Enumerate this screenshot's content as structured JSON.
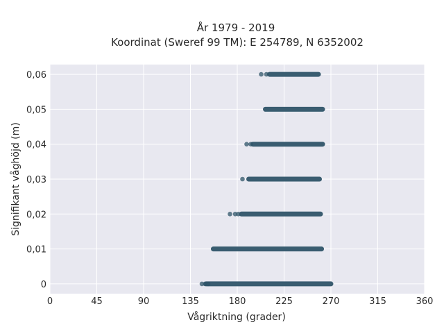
{
  "chart_data": {
    "type": "scatter",
    "title": "År 1979 - 2019",
    "subtitle": "Koordinat (Sweref 99 TM): E 254789, N 6352002",
    "xlabel": "Vågriktning (grader)",
    "ylabel": "Signifikant våghöjd (m)",
    "xlim": [
      0,
      360
    ],
    "ylim": [
      -0.0028,
      0.0628
    ],
    "x_ticks": [
      {
        "value": 0,
        "label": "0"
      },
      {
        "value": 45,
        "label": "45"
      },
      {
        "value": 90,
        "label": "90"
      },
      {
        "value": 135,
        "label": "135"
      },
      {
        "value": 180,
        "label": "180"
      },
      {
        "value": 225,
        "label": "225"
      },
      {
        "value": 270,
        "label": "270"
      },
      {
        "value": 315,
        "label": "315"
      },
      {
        "value": 360,
        "label": "360"
      }
    ],
    "y_ticks": [
      {
        "value": 0,
        "label": "0"
      },
      {
        "value": 0.01,
        "label": "0,01"
      },
      {
        "value": 0.02,
        "label": "0,02"
      },
      {
        "value": 0.03,
        "label": "0,03"
      },
      {
        "value": 0.04,
        "label": "0,04"
      },
      {
        "value": 0.05,
        "label": "0,05"
      },
      {
        "value": 0.06,
        "label": "0,06"
      }
    ],
    "grid": true,
    "legend": "none",
    "colors": {
      "marker": "#2f5468",
      "background": "#e8e8f0",
      "grid": "#ffffff"
    },
    "bands": [
      {
        "y": 0.06,
        "scatter_x": [
          203,
          208
        ],
        "dense_range": [
          211,
          258
        ]
      },
      {
        "y": 0.05,
        "scatter_x": [],
        "dense_range": [
          207,
          262
        ]
      },
      {
        "y": 0.04,
        "scatter_x": [
          189,
          193
        ],
        "dense_range": [
          195,
          262
        ]
      },
      {
        "y": 0.03,
        "scatter_x": [
          185
        ],
        "dense_range": [
          191,
          259
        ]
      },
      {
        "y": 0.02,
        "scatter_x": [
          173,
          178,
          181
        ],
        "dense_range": [
          184,
          260
        ]
      },
      {
        "y": 0.01,
        "scatter_x": [],
        "dense_range": [
          157,
          261
        ]
      },
      {
        "y": 0,
        "scatter_x": [
          146,
          149,
          152
        ],
        "dense_range": [
          150,
          270
        ]
      }
    ]
  }
}
